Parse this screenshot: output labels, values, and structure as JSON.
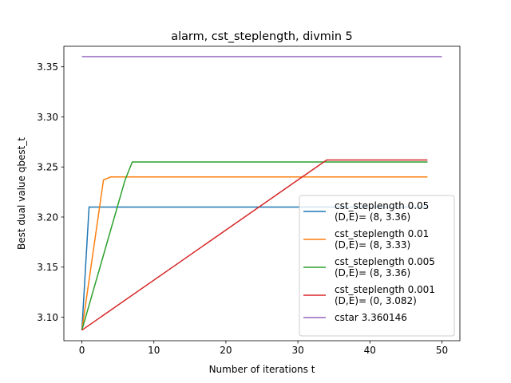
{
  "chart_data": {
    "type": "line",
    "title": "alarm, cst_steplength, divmin 5",
    "xlabel": "Number of iterations t",
    "ylabel": "Best dual value qbest_t",
    "xlim": [
      -2.5,
      52.5
    ],
    "ylim": [
      3.0765,
      3.3705
    ],
    "xticks": [
      0,
      10,
      20,
      30,
      40,
      50
    ],
    "yticks": [
      3.1,
      3.15,
      3.2,
      3.25,
      3.3,
      3.35
    ],
    "grid": false,
    "legend_position": "lower-right",
    "series": [
      {
        "name": "cst_steplength 0.05\n(D,E)= (8, 3.36)",
        "color": "#1f77b4",
        "x": [
          0,
          1,
          48
        ],
        "y": [
          3.087,
          3.21,
          3.21
        ]
      },
      {
        "name": "cst_steplength 0.01\n(D,E)= (8, 3.33)",
        "color": "#ff7f0e",
        "x": [
          0,
          3,
          4,
          48
        ],
        "y": [
          3.087,
          3.237,
          3.24,
          3.24
        ]
      },
      {
        "name": "cst_steplength 0.005\n(D,E)= (8, 3.36)",
        "color": "#2ca02c",
        "x": [
          0,
          6,
          7,
          48
        ],
        "y": [
          3.087,
          3.237,
          3.255,
          3.255
        ]
      },
      {
        "name": "cst_steplength 0.001\n(D,E)= (0, 3.082)",
        "color": "#d62728",
        "x": [
          0,
          34,
          48
        ],
        "y": [
          3.087,
          3.257,
          3.257
        ]
      },
      {
        "name": "cstar 3.360146",
        "color": "#9467bd",
        "x": [
          0,
          50
        ],
        "y": [
          3.360146,
          3.360146
        ]
      }
    ]
  }
}
